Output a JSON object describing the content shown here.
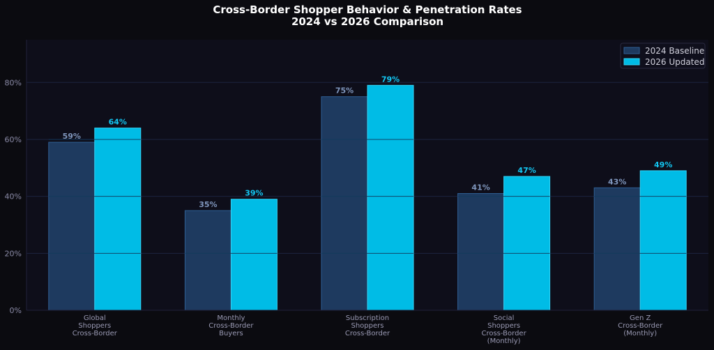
{
  "chart_data": {
    "type": "bar",
    "title": [
      "Cross-Border Shopper Behavior & Penetration Rates",
      "2024 vs 2026 Comparison"
    ],
    "categories": [
      [
        "Global",
        "Shoppers",
        "Cross-Border"
      ],
      [
        "Monthly",
        "Cross-Border",
        "Buyers"
      ],
      [
        "Subscription",
        "Shoppers",
        "Cross-Border"
      ],
      [
        "Social",
        "Shoppers",
        "Cross-Border",
        "(Monthly)"
      ],
      [
        "Gen Z",
        "Cross-Border",
        "(Monthly)"
      ]
    ],
    "series": [
      {
        "name": "2024 Baseline",
        "values": [
          59,
          35,
          75,
          41,
          43
        ],
        "color": "#1e3a5f",
        "edge": "#2f5f94",
        "label_color": "#7f96bd"
      },
      {
        "name": "2026 Updated",
        "values": [
          64,
          39,
          79,
          47,
          49
        ],
        "color": "#00bce6",
        "edge": "#35d3f5",
        "label_color": "#13c6f2"
      }
    ],
    "value_suffix": "%",
    "ylim": [
      0,
      95
    ],
    "yticks": [
      0,
      20,
      40,
      60,
      80
    ],
    "ytick_labels": [
      "0%",
      "20%",
      "40%",
      "60%",
      "80%"
    ],
    "grid": true,
    "legend_position": "top-right",
    "colors": {
      "background": "#0b0b10",
      "plot_background": "#0e0e1a",
      "grid": "#1c2440",
      "axis": "#20203a"
    }
  }
}
